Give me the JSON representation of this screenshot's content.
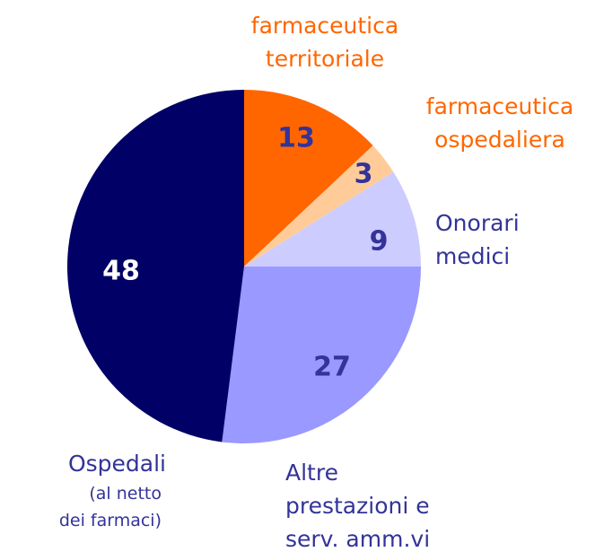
{
  "chart_data": {
    "type": "pie",
    "categories": [
      "farmaceutica\nterritoriale",
      "farmaceutica\nospedaliera",
      "Onorari\nmedici",
      "Altre\nprestazioni e\nserv. amm.vi",
      "Ospedali"
    ],
    "values": [
      13,
      3,
      9,
      27,
      48
    ],
    "colors": [
      "#ff6600",
      "#ffcc99",
      "#ccccff",
      "#9999ff",
      "#000066"
    ],
    "label_colors": [
      "#ff6600",
      "#ff6600",
      "#333399",
      "#333399",
      "#333399"
    ],
    "value_label_colors": [
      "#333399",
      "#333399",
      "#333399",
      "#333399",
      "#ffffff"
    ],
    "annotations": [
      {
        "text": "(al netto\ndei farmaci)"
      }
    ]
  }
}
